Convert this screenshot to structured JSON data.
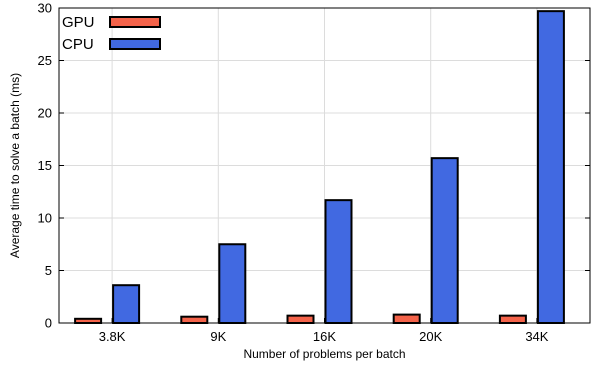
{
  "chart_data": {
    "type": "bar",
    "categories": [
      "3.8K",
      "9K",
      "16K",
      "20K",
      "34K"
    ],
    "series": [
      {
        "name": "GPU",
        "values": [
          0.4,
          0.6,
          0.7,
          0.8,
          0.7
        ],
        "color": "#f4634a"
      },
      {
        "name": "CPU",
        "values": [
          3.6,
          7.5,
          11.7,
          15.7,
          29.7
        ],
        "color": "#4169e1"
      }
    ],
    "xlabel": "Number of problems per batch",
    "ylabel": "Average time to solve a batch (ms)",
    "ylim": [
      0,
      30
    ],
    "yticks": [
      0,
      5,
      10,
      15,
      20,
      25,
      30
    ],
    "grid": true,
    "legend_position": "top-left"
  }
}
